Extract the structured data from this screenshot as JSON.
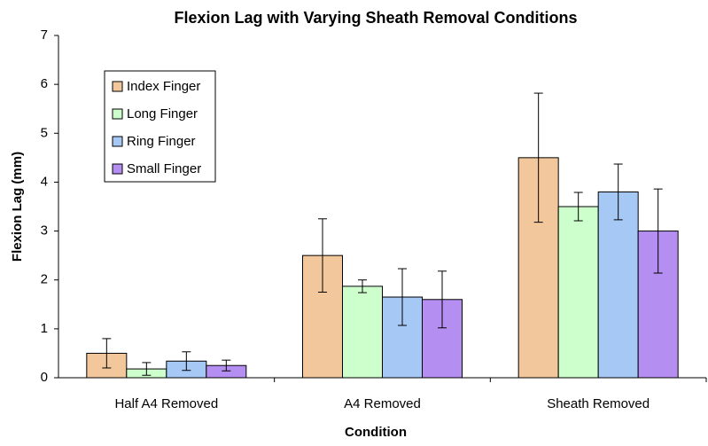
{
  "chart_data": {
    "type": "bar",
    "title": "Flexion Lag with Varying Sheath Removal Conditions",
    "x_label": "Condition",
    "y_label": "Flexion Lag (mm)",
    "categories": [
      "Half A4 Removed",
      "A4 Removed",
      "Sheath Removed"
    ],
    "series": [
      {
        "name": "Index Finger",
        "color": "#f2c79b",
        "values": [
          0.5,
          2.5,
          4.5
        ],
        "errors": [
          0.3,
          0.75,
          1.32
        ]
      },
      {
        "name": "Long Finger",
        "color": "#ccffcc",
        "values": [
          0.18,
          1.87,
          3.5
        ],
        "errors": [
          0.13,
          0.13,
          0.29
        ]
      },
      {
        "name": "Ring Finger",
        "color": "#a6c8f5",
        "values": [
          0.34,
          1.65,
          3.8
        ],
        "errors": [
          0.19,
          0.58,
          0.57
        ]
      },
      {
        "name": "Small Finger",
        "color": "#b48ef0",
        "values": [
          0.25,
          1.6,
          3.0
        ],
        "errors": [
          0.11,
          0.58,
          0.86
        ]
      }
    ],
    "ylim": [
      0,
      7
    ],
    "yticks": [
      0,
      1,
      2,
      3,
      4,
      5,
      6,
      7
    ],
    "grid": false,
    "legend": "upper left"
  }
}
